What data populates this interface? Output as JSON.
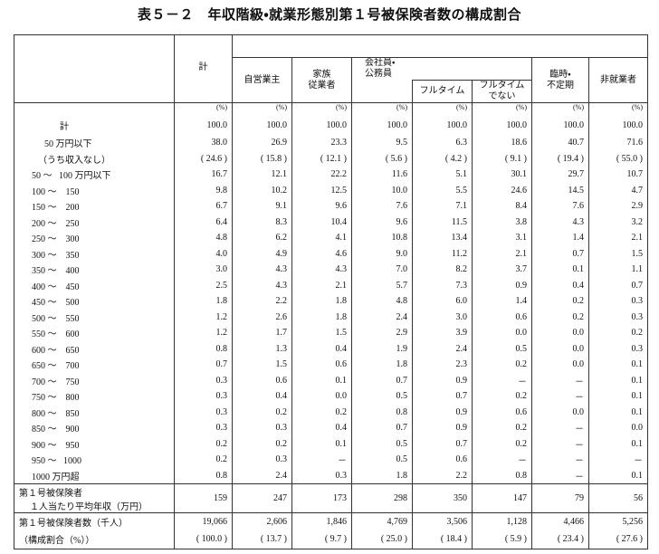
{
  "title": "表５－２　年収階級・就業形態別第１号被保険者数の構成割合",
  "table": {
    "headers": {
      "total": "計",
      "self_employed": "自営業主",
      "family": "家族\n従業者",
      "employee": "会社員・\n公務員",
      "full_time": "フルタイム",
      "part_time": "フルタイム\nでない",
      "temporary": "臨時・\n不定期",
      "non_employed": "非就業者"
    },
    "units": [
      "(%)",
      "(%)",
      "(%)",
      "(%)",
      "(%)",
      "(%)",
      "(%)",
      "(%)"
    ],
    "rows": [
      {
        "label": "計",
        "values": [
          "100.0",
          "100.0",
          "100.0",
          "100.0",
          "100.0",
          "100.0",
          "100.0",
          "100.0"
        ]
      },
      {
        "label": "50 万円以下",
        "values": [
          "38.0",
          "26.9",
          "23.3",
          "9.5",
          "6.3",
          "18.6",
          "40.7",
          "71.6"
        ]
      },
      {
        "label": "（うち収入なし）",
        "values": [
          "( 24.6 )",
          "( 15.8 )",
          "( 12.1 )",
          "( 5.6 )",
          "( 4.2 )",
          "( 9.1 )",
          "( 19.4 )",
          "( 55.0 )"
        ]
      },
      {
        "label": "50 ～   100 万円以下",
        "values": [
          "16.7",
          "12.1",
          "22.2",
          "11.6",
          "5.1",
          "30.1",
          "29.7",
          "10.7"
        ]
      },
      {
        "label": "100 ～    150",
        "values": [
          "9.8",
          "10.2",
          "12.5",
          "10.0",
          "5.5",
          "24.6",
          "14.5",
          "4.7"
        ]
      },
      {
        "label": "150 ～    200",
        "values": [
          "6.7",
          "9.1",
          "9.6",
          "7.6",
          "7.1",
          "8.4",
          "7.6",
          "2.9"
        ]
      },
      {
        "label": "200 ～    250",
        "values": [
          "6.4",
          "8.3",
          "10.4",
          "9.6",
          "11.5",
          "3.8",
          "4.3",
          "3.2"
        ]
      },
      {
        "label": "250 ～    300",
        "values": [
          "4.8",
          "6.2",
          "4.1",
          "10.8",
          "13.4",
          "3.1",
          "1.4",
          "2.1"
        ]
      },
      {
        "label": "300 ～    350",
        "values": [
          "4.0",
          "4.9",
          "4.6",
          "9.0",
          "11.2",
          "2.1",
          "0.7",
          "1.5"
        ]
      },
      {
        "label": "350 ～    400",
        "values": [
          "3.0",
          "4.3",
          "4.3",
          "7.0",
          "8.2",
          "3.7",
          "0.1",
          "1.1"
        ]
      },
      {
        "label": "400 ～    450",
        "values": [
          "2.5",
          "4.3",
          "2.1",
          "5.7",
          "7.3",
          "0.9",
          "0.4",
          "0.7"
        ]
      },
      {
        "label": "450 ～    500",
        "values": [
          "1.8",
          "2.2",
          "1.8",
          "4.8",
          "6.0",
          "1.4",
          "0.2",
          "0.3"
        ]
      },
      {
        "label": "500 ～    550",
        "values": [
          "1.2",
          "2.6",
          "1.8",
          "2.4",
          "3.0",
          "0.6",
          "0.2",
          "0.3"
        ]
      },
      {
        "label": "550 ～    600",
        "values": [
          "1.2",
          "1.7",
          "1.5",
          "2.9",
          "3.9",
          "0.0",
          "0.0",
          "0.2"
        ]
      },
      {
        "label": "600 ～    650",
        "values": [
          "0.8",
          "1.3",
          "0.4",
          "1.9",
          "2.4",
          "0.5",
          "0.0",
          "0.3"
        ]
      },
      {
        "label": "650 ～    700",
        "values": [
          "0.7",
          "1.5",
          "0.6",
          "1.8",
          "2.3",
          "0.2",
          "0.0",
          "0.1"
        ]
      },
      {
        "label": "700 ～    750",
        "values": [
          "0.3",
          "0.6",
          "0.1",
          "0.7",
          "0.9",
          "－",
          "－",
          "0.1"
        ]
      },
      {
        "label": "750 ～    800",
        "values": [
          "0.3",
          "0.4",
          "0.0",
          "0.5",
          "0.7",
          "0.2",
          "－",
          "0.1"
        ]
      },
      {
        "label": "800 ～    850",
        "values": [
          "0.3",
          "0.2",
          "0.2",
          "0.8",
          "0.9",
          "0.6",
          "0.0",
          "0.1"
        ]
      },
      {
        "label": "850 ～    900",
        "values": [
          "0.3",
          "0.3",
          "0.4",
          "0.7",
          "0.9",
          "0.2",
          "－",
          "0.0"
        ]
      },
      {
        "label": "900 ～    950",
        "values": [
          "0.2",
          "0.2",
          "0.1",
          "0.5",
          "0.7",
          "0.2",
          "－",
          "0.1"
        ]
      },
      {
        "label": "950 ～   1000",
        "values": [
          "0.2",
          "0.3",
          "－",
          "0.5",
          "0.6",
          "－",
          "－",
          "－"
        ]
      },
      {
        "label": "1000 万円超",
        "values": [
          "0.8",
          "2.4",
          "0.3",
          "1.8",
          "2.2",
          "0.8",
          "－",
          "0.1"
        ]
      }
    ],
    "summary": [
      {
        "label": [
          "第１号被保険者",
          "１人当たり平均年収（万円）"
        ],
        "values": [
          "159",
          "247",
          "173",
          "298",
          "350",
          "147",
          "79",
          "56"
        ]
      },
      {
        "label": [
          "第１号被保険者数（千人）"
        ],
        "values": [
          "19,066",
          "2,606",
          "1,846",
          "4,769",
          "3,506",
          "1,128",
          "4,466",
          "5,256"
        ]
      },
      {
        "label": [
          "（構成割合（%））"
        ],
        "values": [
          "( 100.0 )",
          "( 13.7 )",
          "( 9.7 )",
          "( 25.0 )",
          "( 18.4 )",
          "( 5.9 )",
          "( 23.4 )",
          "( 27.6 )"
        ]
      }
    ]
  }
}
